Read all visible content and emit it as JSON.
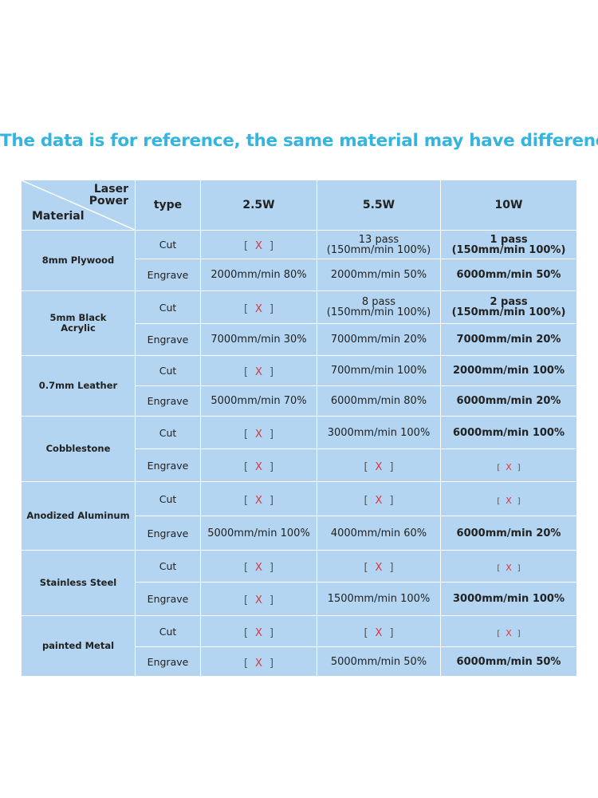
{
  "title": "The data is for reference, the same material may have differences",
  "header": {
    "laser": "Laser",
    "power": "Power",
    "material": "Material",
    "type": "type",
    "powers": [
      "2.5W",
      "5.5W",
      "10W"
    ]
  },
  "na": {
    "open": "[",
    "x": "X",
    "close": "]"
  },
  "materials": [
    {
      "name": "8mm Plywood",
      "cut": {
        "p1": "[ X ]",
        "p2_line1": "13 pass",
        "p2_line2": "(150mm/min 100%)",
        "p3_line1": "1 pass",
        "p3_line2": "(150mm/min 100%)"
      },
      "engrave": {
        "label": "Engrave",
        "p1": "2000mm/min 80%",
        "p2": "2000mm/min 50%",
        "p3": "6000mm/min 50%"
      },
      "cut_label": "Cut"
    },
    {
      "name_line1": "5mm Black",
      "name_line2": "Acrylic",
      "cut": {
        "p1": "[ X ]",
        "p2_line1": "8 pass",
        "p2_line2": "(150mm/min 100%)",
        "p3_line1": "2 pass",
        "p3_line2": "(150mm/min 100%)"
      },
      "engrave": {
        "label": "Engrave",
        "p1": "7000mm/min 30%",
        "p2": "7000mm/min 20%",
        "p3": "7000mm/min 20%"
      },
      "cut_label": "Cut"
    },
    {
      "name": "0.7mm Leather",
      "cut": {
        "p1": "[ X ]",
        "p2": "700mm/min 100%",
        "p3": "2000mm/min 100%"
      },
      "engrave": {
        "label": "Engrave",
        "p1": "5000mm/min 70%",
        "p2": "6000mm/min 80%",
        "p3": "6000mm/min 20%"
      },
      "cut_label": "Cut"
    },
    {
      "name": "Cobblestone",
      "cut": {
        "p1": "[ X ]",
        "p2": "3000mm/min 100%",
        "p3": "6000mm/min 100%"
      },
      "engrave": {
        "label": "Engrave",
        "p1": "[ X ]",
        "p2": "[ X ]",
        "p3": "[ X ]"
      },
      "cut_label": "Cut"
    },
    {
      "name": "Anodized Aluminum",
      "cut": {
        "p1": "[ X ]",
        "p2": "[ X ]",
        "p3": "[ X ]"
      },
      "engrave": {
        "label": "Engrave",
        "p1": "5000mm/min 100%",
        "p2": "4000mm/min 60%",
        "p3": "6000mm/min 20%"
      },
      "cut_label": "Cut"
    },
    {
      "name": "Stainless Steel",
      "cut": {
        "p1": "[ X ]",
        "p2": "[ X ]",
        "p3": "[ X ]"
      },
      "engrave": {
        "label": "Engrave",
        "p1": "[ X ]",
        "p2": "1500mm/min 100%",
        "p3": "3000mm/min 100%"
      },
      "cut_label": "Cut"
    },
    {
      "name": "painted Metal",
      "cut": {
        "p1": "[ X ]",
        "p2": "[ X ]",
        "p3": "[ X ]"
      },
      "engrave": {
        "label": "Engrave",
        "p1": "[ X ]",
        "p2": "5000mm/min 50%",
        "p3": "6000mm/min 50%"
      },
      "cut_label": "Cut"
    }
  ]
}
